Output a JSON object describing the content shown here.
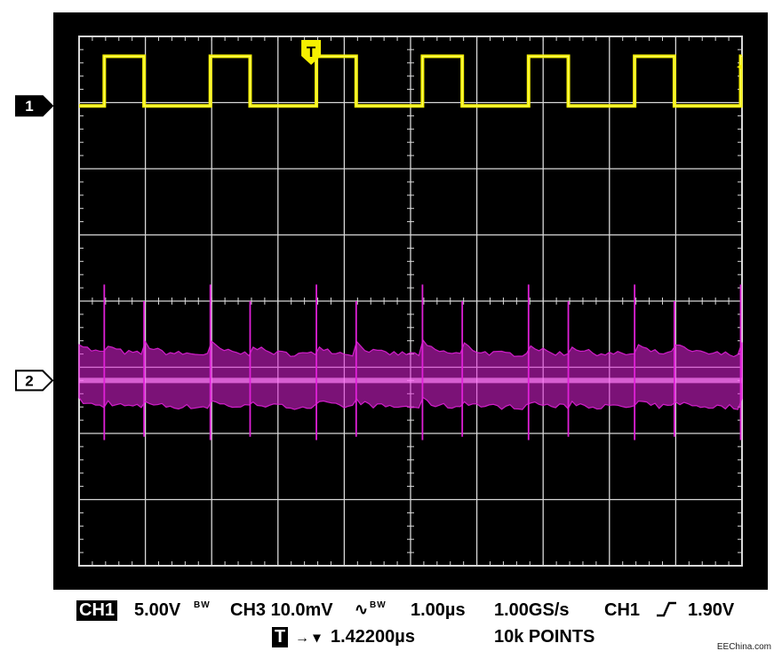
{
  "chart_data": {
    "type": "line",
    "display": "oscilloscope",
    "x_divisions": 10,
    "y_divisions": 8,
    "time_per_div": "1.00µs",
    "series": [
      {
        "name": "1",
        "color": "#f5f000",
        "kind": "square",
        "period_div": 1.6,
        "duty": 0.375,
        "first_rise_div": 0.38,
        "low_div": 6.95,
        "high_div": 7.7
      },
      {
        "name": "2",
        "color": "#e020d8",
        "kind": "noise_band",
        "center_div": 2.8,
        "band_div": 0.8,
        "spikes_at_edges": true
      }
    ],
    "trigger_marker_div": 3.5
  },
  "marker_labels": {
    "ch1": "1",
    "ch2": "2",
    "trigger": "T"
  },
  "status_bar": {
    "ch1_badge": "CH1",
    "ch1_scale": "5.00V",
    "bw1": "BW",
    "ch3_scale": "CH3 10.0mV",
    "bw3": "BW",
    "timebase": "1.00µs",
    "sample_rate": "1.00GS/s",
    "trig_src": "CH1",
    "trig_level": "1.90V",
    "trig_badge": "T",
    "trig_arrow": "→ ▾",
    "trig_delay": "1.42200µs",
    "points": "10k POINTS"
  },
  "watermark": "EEChina.com",
  "colors": {
    "ch1": "#f5f000",
    "ch2": "#e020d8",
    "grid": "#d8d8d8",
    "screen": "#000000"
  }
}
